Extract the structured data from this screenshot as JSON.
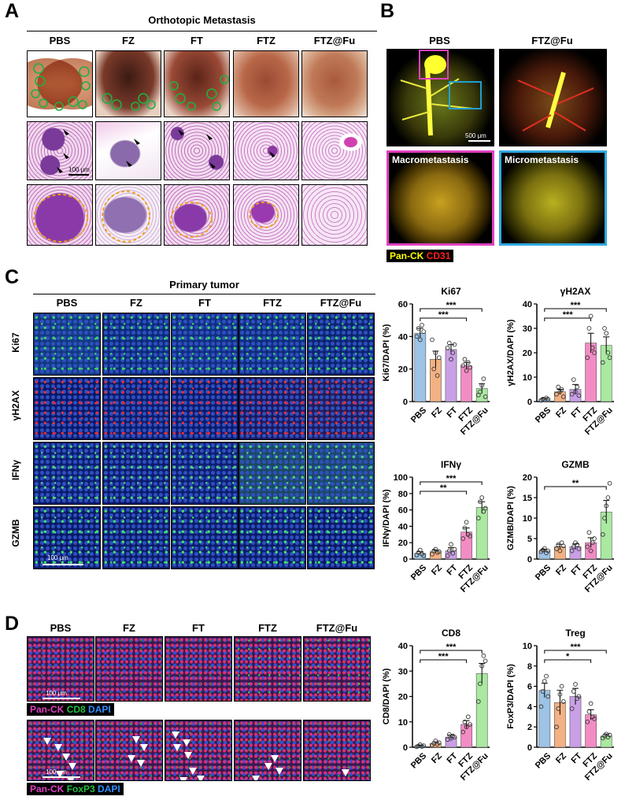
{
  "panel_letters": {
    "a": "A",
    "b": "B",
    "c": "C",
    "d": "D"
  },
  "panel_a": {
    "title": "Orthotopic Metastasis",
    "groups": [
      "PBS",
      "FZ",
      "FT",
      "FTZ",
      "FTZ@Fu"
    ],
    "scale_label": "100 μm"
  },
  "panel_b": {
    "groups": [
      "PBS",
      "FTZ@Fu"
    ],
    "scale_label": "500 μm",
    "inset_macro": "Macrometastasis",
    "inset_micro": "Micrometastasis",
    "legend": {
      "pan_ck": "Pan-CK",
      "cd31": "CD31"
    }
  },
  "panel_c": {
    "title": "Primary tumor",
    "groups": [
      "PBS",
      "FZ",
      "FT",
      "FTZ",
      "FTZ@Fu"
    ],
    "rows": [
      "Ki67",
      "γH2AX",
      "IFNγ",
      "GZMB"
    ],
    "scale_label": "100 μm"
  },
  "panel_d": {
    "groups": [
      "PBS",
      "FZ",
      "FT",
      "FTZ",
      "FTZ@Fu"
    ],
    "scale_label": "100 μm",
    "legend_top": {
      "a": "Pan-CK",
      "b": "CD8",
      "c": "DAPI"
    },
    "legend_bottom": {
      "a": "Pan-CK",
      "b": "FoxP3",
      "c": "DAPI"
    }
  },
  "colors": {
    "PBS": "#9dc3e6",
    "FZ": "#f4b183",
    "FT": "#c9a0e6",
    "FTZ": "#f28cc4",
    "FTZ@Fu": "#a9e9a0",
    "pan_ck": "#ffff00",
    "cd31": "#ff2020",
    "pan_ck_d": "#e040c0",
    "cd8": "#20c040",
    "dapi": "#3090ff"
  },
  "chart_data": [
    {
      "type": "bar",
      "title": "Ki67",
      "ylabel": "Ki67/DAPI (%)",
      "categories": [
        "PBS",
        "FZ",
        "FT",
        "FTZ",
        "FTZ@Fu"
      ],
      "values": [
        42,
        26,
        32,
        22,
        8
      ],
      "errors": [
        3,
        5,
        3,
        2,
        3
      ],
      "points": [
        [
          40,
          45,
          38,
          47,
          43
        ],
        [
          38,
          20,
          30,
          16,
          27
        ],
        [
          33,
          36,
          26,
          30,
          35
        ],
        [
          22,
          26,
          19,
          24,
          21
        ],
        [
          4,
          6,
          10,
          14,
          3
        ]
      ],
      "ylim": [
        0,
        60
      ],
      "yticks": [
        0,
        20,
        40,
        60
      ],
      "sig": [
        {
          "from": 0,
          "to": 3,
          "label": "***"
        },
        {
          "from": 0,
          "to": 4,
          "label": "***"
        }
      ]
    },
    {
      "type": "bar",
      "title": "γH2AX",
      "ylabel": "γH2AX/DAPI (%)",
      "categories": [
        "PBS",
        "FZ",
        "FT",
        "FTZ",
        "FTZ@Fu"
      ],
      "values": [
        1,
        4,
        5,
        24,
        23
      ],
      "errors": [
        0.5,
        1,
        2,
        4,
        3.5
      ],
      "points": [
        [
          0.5,
          1,
          0.7,
          1.5,
          1
        ],
        [
          3,
          6,
          4,
          5,
          2
        ],
        [
          3,
          9,
          4,
          6,
          2.5
        ],
        [
          18,
          30,
          35,
          22,
          20
        ],
        [
          16,
          30,
          28,
          20,
          18
        ]
      ],
      "ylim": [
        0,
        40
      ],
      "yticks": [
        0,
        10,
        20,
        30,
        40
      ],
      "sig": [
        {
          "from": 0,
          "to": 3,
          "label": "***"
        },
        {
          "from": 0,
          "to": 4,
          "label": "***"
        }
      ]
    },
    {
      "type": "bar",
      "title": "IFNγ",
      "ylabel": "IFNγ/DAPI (%)",
      "categories": [
        "PBS",
        "FZ",
        "FT",
        "FTZ",
        "FTZ@Fu"
      ],
      "values": [
        7,
        9,
        10,
        33,
        63
      ],
      "errors": [
        2,
        2,
        4,
        5,
        7
      ],
      "points": [
        [
          5,
          8,
          11,
          6,
          4
        ],
        [
          6,
          10,
          12,
          8,
          9
        ],
        [
          4,
          10,
          18,
          7,
          12
        ],
        [
          25,
          38,
          45,
          30,
          28
        ],
        [
          50,
          70,
          75,
          58,
          62
        ]
      ],
      "ylim": [
        0,
        100
      ],
      "yticks": [
        0,
        20,
        40,
        60,
        80,
        100
      ],
      "sig": [
        {
          "from": 0,
          "to": 3,
          "label": "**"
        },
        {
          "from": 0,
          "to": 4,
          "label": "***"
        }
      ]
    },
    {
      "type": "bar",
      "title": "GZMB",
      "ylabel": "GZMB/DAPI (%)",
      "categories": [
        "PBS",
        "FZ",
        "FT",
        "FTZ",
        "FTZ@Fu"
      ],
      "values": [
        2,
        3,
        3,
        4,
        11.5
      ],
      "errors": [
        0.4,
        0.6,
        0.7,
        1.2,
        2.8
      ],
      "points": [
        [
          1.8,
          2.2,
          2.6,
          1.5,
          2
        ],
        [
          2.5,
          3.5,
          2,
          4,
          3.2
        ],
        [
          2,
          3,
          4,
          3.5,
          2.5
        ],
        [
          3,
          6.5,
          2,
          4,
          5
        ],
        [
          6,
          10,
          13,
          15,
          18.5
        ]
      ],
      "ylim": [
        0,
        20
      ],
      "yticks": [
        0,
        5,
        10,
        15,
        20
      ],
      "sig": [
        {
          "from": 0,
          "to": 4,
          "label": "**"
        }
      ]
    },
    {
      "type": "bar",
      "title": "CD8",
      "ylabel": "CD8/DAPI (%)",
      "categories": [
        "PBS",
        "FZ",
        "FT",
        "FTZ",
        "FTZ@Fu"
      ],
      "values": [
        0.5,
        1.5,
        4,
        9,
        29
      ],
      "errors": [
        0.3,
        0.6,
        0.8,
        1.5,
        4
      ],
      "points": [
        [
          0.2,
          0.5,
          1,
          0.3,
          0.6
        ],
        [
          0.8,
          1.5,
          2.5,
          1.2,
          1.8
        ],
        [
          3,
          5,
          3.5,
          4.5,
          4
        ],
        [
          6,
          10,
          8,
          12,
          9
        ],
        [
          18,
          25,
          32,
          36,
          34
        ]
      ],
      "ylim": [
        0,
        40
      ],
      "yticks": [
        0,
        10,
        20,
        30,
        40
      ],
      "sig": [
        {
          "from": 0,
          "to": 3,
          "label": "***"
        },
        {
          "from": 0,
          "to": 4,
          "label": "***"
        }
      ]
    },
    {
      "type": "bar",
      "title": "Treg",
      "ylabel": "FoxP3/DAPI (%)",
      "categories": [
        "PBS",
        "FZ",
        "FT",
        "FTZ",
        "FTZ@Fu"
      ],
      "values": [
        5.6,
        4.4,
        5.0,
        3.2,
        1.1
      ],
      "errors": [
        0.7,
        1.2,
        0.8,
        0.5,
        0.2
      ],
      "points": [
        [
          4,
          5.5,
          6.5,
          7,
          5
        ],
        [
          2,
          3.8,
          5.2,
          6,
          4.5
        ],
        [
          3.8,
          5.5,
          6.2,
          4.8,
          5
        ],
        [
          2.5,
          3.5,
          4.3,
          3,
          2.8
        ],
        [
          0.9,
          1.1,
          1.3,
          1,
          1.2
        ]
      ],
      "ylim": [
        0,
        10
      ],
      "yticks": [
        0,
        2,
        4,
        6,
        8,
        10
      ],
      "sig": [
        {
          "from": 0,
          "to": 3,
          "label": "*"
        },
        {
          "from": 0,
          "to": 4,
          "label": "***"
        }
      ]
    }
  ]
}
